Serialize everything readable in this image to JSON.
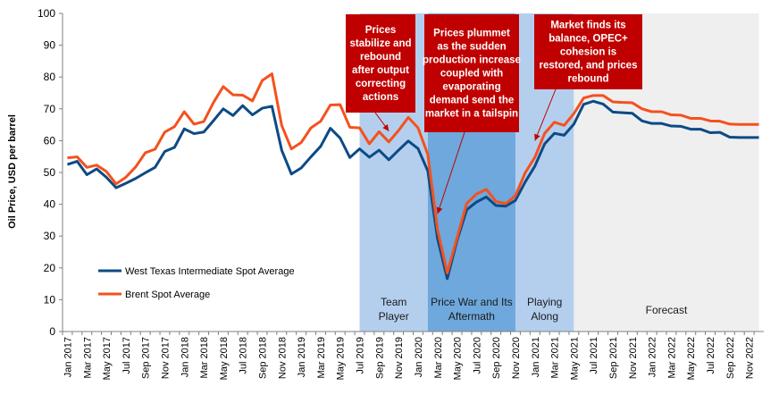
{
  "chart_data": {
    "type": "line",
    "ylabel": "Oil Price, USD per barrel",
    "xlabel": "",
    "ylim": [
      0,
      100
    ],
    "yticks": [
      0,
      10,
      20,
      30,
      40,
      50,
      60,
      70,
      80,
      90,
      100
    ],
    "grid": false,
    "legend_position": "lower-left",
    "x": [
      "Jan 2017",
      "Feb 2017",
      "Mar 2017",
      "Apr 2017",
      "May 2017",
      "Jun 2017",
      "Jul 2017",
      "Aug 2017",
      "Sep 2017",
      "Oct 2017",
      "Nov 2017",
      "Dec 2017",
      "Jan 2018",
      "Feb 2018",
      "Mar 2018",
      "Apr 2018",
      "May 2018",
      "Jun 2018",
      "Jul 2018",
      "Aug 2018",
      "Sep 2018",
      "Oct 2018",
      "Nov 2018",
      "Dec 2018",
      "Jan 2019",
      "Feb 2019",
      "Mar 2019",
      "Apr 2019",
      "May 2019",
      "Jun 2019",
      "Jul 2019",
      "Aug 2019",
      "Sep 2019",
      "Oct 2019",
      "Nov 2019",
      "Dec 2019",
      "Jan 2020",
      "Feb 2020",
      "Mar 2020",
      "Apr 2020",
      "May 2020",
      "Jun 2020",
      "Jul 2020",
      "Aug 2020",
      "Sep 2020",
      "Oct 2020",
      "Nov 2020",
      "Dec 2020",
      "Jan 2021",
      "Feb 2021",
      "Mar 2021",
      "Apr 2021",
      "May 2021",
      "Jun 2021",
      "Jul 2021",
      "Aug 2021",
      "Sep 2021",
      "Oct 2021",
      "Nov 2021",
      "Dec 2021",
      "Jan 2022",
      "Feb 2022",
      "Mar 2022",
      "Apr 2022",
      "May 2022",
      "Jun 2022",
      "Jul 2022",
      "Aug 2022",
      "Sep 2022",
      "Oct 2022",
      "Nov 2022",
      "Dec 2022"
    ],
    "tick_labels": [
      "Jan 2017",
      "Mar 2017",
      "May 2017",
      "Jul 2017",
      "Sep 2017",
      "Nov 2017",
      "Jan 2018",
      "Mar 2018",
      "May 2018",
      "Jul 2018",
      "Sep 2018",
      "Nov 2018",
      "Jan 2019",
      "Mar 2019",
      "May 2019",
      "Jul 2019",
      "Sep 2019",
      "Nov 2019",
      "Jan 2020",
      "Mar 2020",
      "May 2020",
      "Jul 2020",
      "Sep 2020",
      "Nov 2020",
      "Jan 2021",
      "Mar 2021",
      "May 2021",
      "Jul 2021",
      "Sep 2021",
      "Nov 2021",
      "Jan 2022",
      "Mar 2022",
      "May 2022",
      "Jul 2022",
      "Sep 2022",
      "Nov 2022"
    ],
    "series": [
      {
        "name": "West Texas Intermediate Spot Average",
        "color": "#0d4a85",
        "values": [
          52.5,
          53.5,
          49.3,
          51.1,
          48.5,
          45.2,
          46.6,
          48.1,
          49.9,
          51.6,
          56.6,
          57.9,
          63.7,
          62.2,
          62.7,
          66.3,
          70.0,
          67.9,
          71.0,
          68.1,
          70.2,
          70.8,
          57.0,
          49.5,
          51.4,
          54.9,
          58.2,
          63.9,
          60.8,
          54.7,
          57.4,
          54.8,
          57.0,
          54.0,
          57.0,
          59.9,
          57.5,
          50.5,
          29.2,
          16.6,
          28.6,
          38.3,
          40.7,
          42.3,
          39.6,
          39.4,
          41.2,
          47.0,
          52.0,
          59.0,
          62.3,
          61.7,
          65.2,
          71.4,
          72.4,
          71.5,
          69.0,
          68.8,
          68.6,
          66.2,
          65.4,
          65.4,
          64.6,
          64.5,
          63.6,
          63.6,
          62.5,
          62.6,
          61.1,
          61.0,
          61.0,
          61.0
        ]
      },
      {
        "name": "Brent Spot Average",
        "color": "#f4511e",
        "values": [
          54.6,
          54.9,
          51.6,
          52.3,
          50.3,
          46.4,
          48.5,
          51.7,
          56.2,
          57.3,
          62.7,
          64.4,
          69.1,
          65.2,
          66.0,
          72.0,
          77.0,
          74.4,
          74.3,
          72.5,
          78.9,
          81.0,
          64.8,
          57.4,
          59.4,
          64.0,
          66.1,
          71.2,
          71.3,
          64.2,
          64.0,
          59.0,
          62.8,
          59.6,
          63.2,
          67.3,
          64.0,
          55.7,
          32.0,
          18.4,
          29.4,
          40.3,
          43.2,
          44.7,
          40.9,
          40.2,
          42.7,
          49.9,
          54.8,
          62.3,
          65.8,
          64.8,
          68.5,
          73.4,
          74.2,
          74.2,
          72.2,
          72.0,
          71.9,
          70.0,
          69.1,
          69.1,
          68.1,
          68.0,
          67.0,
          67.0,
          66.2,
          66.1,
          65.2,
          65.1,
          65.1,
          65.1
        ]
      }
    ],
    "regions": [
      {
        "label_lines": [
          "Team",
          "Player"
        ],
        "start": "Jul 2019",
        "end": "Feb 2020",
        "color": "#b4cfee"
      },
      {
        "label_lines": [
          "Price War and Its",
          "Aftermath"
        ],
        "start": "Feb 2020",
        "end": "Nov 2020",
        "color": "#6fa8dc"
      },
      {
        "label_lines": [
          "Playing",
          "Along"
        ],
        "start": "Nov 2020",
        "end": "May 2021",
        "color": "#b4cfee"
      },
      {
        "label_lines": [
          "Forecast"
        ],
        "start": "May 2021",
        "end": "Dec 2022",
        "color": "#efefef"
      }
    ],
    "annotations": [
      {
        "lines": [
          "Prices",
          "stabilize and",
          "rebound",
          "after output",
          "correcting",
          "actions"
        ],
        "target_x": "Oct 2019",
        "target_y": 63
      },
      {
        "lines": [
          "Prices plummet",
          "as the sudden",
          "production increase",
          "coupled with",
          "evaporating",
          "demand send the",
          "market in a tailspin"
        ],
        "target_x": "Mar 2020",
        "target_y": 37
      },
      {
        "lines": [
          "Market finds its",
          "balance, OPEC+",
          "cohesion is",
          "restored, and prices",
          "rebound"
        ],
        "target_x": "Jan 2021",
        "target_y": 60
      }
    ],
    "annotation_color": "#c00000"
  }
}
